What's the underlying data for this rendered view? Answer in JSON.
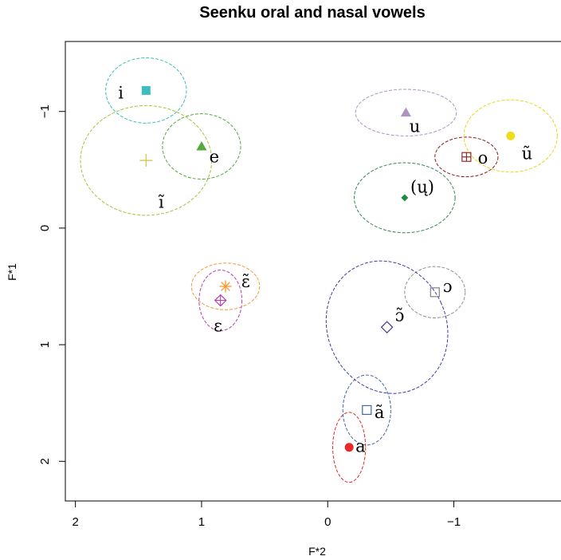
{
  "chart_data": {
    "type": "scatter",
    "title": "Seenku oral and nasal vowels",
    "xlabel": "F*2",
    "ylabel": "F*1",
    "x_reversed": true,
    "y_reversed": true,
    "xlim": [
      2.08,
      -1.9
    ],
    "ylim": [
      -1.6,
      2.34
    ],
    "xticks": [
      2,
      1,
      0,
      -1
    ],
    "xtick_labels": [
      "2",
      "1",
      "0",
      "−1"
    ],
    "yticks": [
      -1,
      0,
      1,
      2
    ],
    "ytick_labels": [
      "−1",
      "0",
      "1",
      "2"
    ],
    "grid": false,
    "points": [
      {
        "label": "i",
        "x": 1.44,
        "y": -1.18,
        "marker": "filled-square",
        "color": "#3dbdbd",
        "ellipse": {
          "rx": 0.32,
          "ry": 0.28,
          "angle": 0,
          "color": "#3dbdbd"
        },
        "label_dx": 0.2,
        "label_dy": 0.03
      },
      {
        "label": "e",
        "x": 1.0,
        "y": -0.7,
        "marker": "filled-triangle",
        "color": "#56aa3c",
        "ellipse": {
          "rx": 0.31,
          "ry": 0.28,
          "angle": 0,
          "color": "#56aa3c"
        },
        "label_dx": -0.1,
        "label_dy": 0.1
      },
      {
        "label": "ĩ",
        "x": 1.44,
        "y": -0.58,
        "marker": "plus",
        "color": "#d4c23c",
        "ellipse": {
          "rx": 0.52,
          "ry": 0.47,
          "angle": 0,
          "color": "#a9c23a"
        },
        "label_dx": -0.12,
        "label_dy": 0.37
      },
      {
        "label": "u",
        "x": -0.62,
        "y": -0.99,
        "marker": "filled-triangle",
        "color": "#b093c1",
        "ellipse": {
          "rx": 0.4,
          "ry": 0.2,
          "angle": 0,
          "color": "#b093c1"
        },
        "label_dx": -0.07,
        "label_dy": 0.13
      },
      {
        "label": "o",
        "x": -1.1,
        "y": -0.61,
        "marker": "square-plus",
        "color": "#8b1a1a",
        "ellipse": {
          "rx": 0.25,
          "ry": 0.17,
          "angle": 0,
          "color": "#8b1a1a"
        },
        "label_dx": -0.13,
        "label_dy": 0.02
      },
      {
        "label": "ũ",
        "x": -1.45,
        "y": -0.79,
        "marker": "filled-circle",
        "color": "#eedd1a",
        "ellipse": {
          "rx": 0.37,
          "ry": 0.31,
          "angle": 0,
          "color": "#e8d81a"
        },
        "label_dx": -0.13,
        "label_dy": 0.16
      },
      {
        "label": "(ų)",
        "x": -0.61,
        "y": -0.26,
        "marker": "filled-diamond",
        "color": "#1e8a46",
        "ellipse": {
          "rx": 0.4,
          "ry": 0.3,
          "angle": 0,
          "color": "#2a8a50"
        },
        "label_dx": -0.14,
        "label_dy": -0.08
      },
      {
        "label": "ɛ̃",
        "x": 0.81,
        "y": 0.5,
        "marker": "asterisk",
        "color": "#f09a30",
        "ellipse": {
          "rx": 0.27,
          "ry": 0.2,
          "angle": 0,
          "color": "#f09a30"
        },
        "label_dx": -0.16,
        "label_dy": -0.03
      },
      {
        "label": "ɛ",
        "x": 0.85,
        "y": 0.62,
        "marker": "diamond-plus",
        "color": "#b040b0",
        "ellipse": {
          "rx": 0.17,
          "ry": 0.26,
          "angle": 0,
          "color": "#b040b0"
        },
        "label_dx": 0.02,
        "label_dy": 0.23
      },
      {
        "label": "ɔ",
        "x": -0.85,
        "y": 0.55,
        "marker": "open-square",
        "color": "#808080",
        "ellipse": {
          "rx": 0.24,
          "ry": 0.22,
          "angle": 0,
          "color": "#909090"
        },
        "label_dx": -0.1,
        "label_dy": -0.04
      },
      {
        "label": "ɔ̃",
        "x": -0.47,
        "y": 0.85,
        "marker": "open-diamond",
        "color": "#3a3a9a",
        "ellipse": {
          "rx": 0.47,
          "ry": 0.58,
          "angle": -25,
          "color": "#3a3aaa"
        },
        "label_dx": -0.1,
        "label_dy": -0.09
      },
      {
        "label": "ã",
        "x": -0.31,
        "y": 1.56,
        "marker": "open-square",
        "color": "#4466aa",
        "ellipse": {
          "rx": 0.19,
          "ry": 0.3,
          "angle": 0,
          "color": "#4466aa"
        },
        "label_dx": -0.1,
        "label_dy": 0.03
      },
      {
        "label": "a",
        "x": -0.17,
        "y": 1.88,
        "marker": "filled-circle",
        "color": "#e82828",
        "ellipse": {
          "rx": 0.13,
          "ry": 0.3,
          "angle": 0,
          "color": "#e82828"
        },
        "label_dx": -0.09,
        "label_dy": 0.0
      }
    ]
  }
}
